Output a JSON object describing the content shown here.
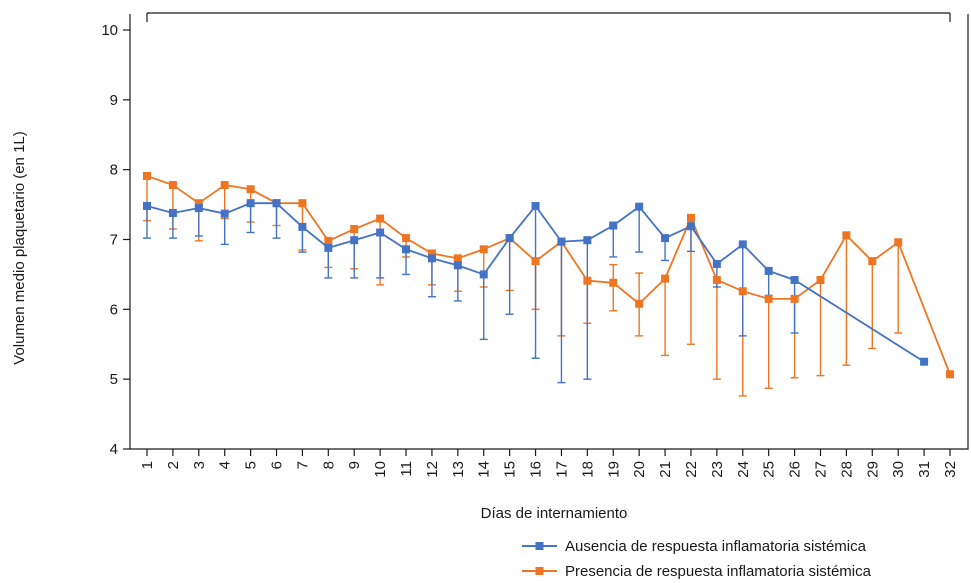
{
  "chart_data": {
    "type": "line",
    "xlabel": "Días de internamiento",
    "ylabel": "Volumen medio plaquetario (en 1L)",
    "ylim": [
      4,
      10
    ],
    "yticks": [
      "4",
      "5",
      "6",
      "7",
      "8",
      "9",
      "10"
    ],
    "categories": [
      "1",
      "2",
      "3",
      "4",
      "5",
      "6",
      "7",
      "8",
      "9",
      "10",
      "11",
      "12",
      "13",
      "14",
      "15",
      "16",
      "17",
      "18",
      "19",
      "20",
      "21",
      "22",
      "23",
      "24",
      "25",
      "26",
      "27",
      "28",
      "29",
      "30",
      "31",
      "32"
    ],
    "grid": false,
    "legend_position": "bottom-right",
    "series": [
      {
        "name": "Ausencia de respuesta inflamatoria sistémica",
        "color": "#4472c4",
        "values": [
          7.48,
          7.38,
          7.45,
          7.37,
          7.52,
          7.52,
          7.18,
          6.88,
          6.99,
          7.1,
          6.86,
          6.73,
          6.63,
          6.5,
          7.02,
          7.48,
          6.97,
          6.99,
          7.2,
          7.47,
          7.02,
          7.19,
          6.65,
          6.93,
          6.55,
          6.42,
          null,
          null,
          null,
          null,
          5.25,
          null
        ],
        "err_low": [
          7.02,
          7.02,
          7.05,
          6.93,
          7.1,
          7.02,
          6.82,
          6.45,
          6.45,
          6.45,
          6.5,
          6.18,
          6.12,
          5.57,
          5.93,
          5.3,
          4.95,
          5.0,
          6.75,
          6.82,
          6.7,
          6.83,
          6.32,
          5.62,
          6.2,
          5.66,
          null,
          null,
          null,
          null,
          null,
          null
        ]
      },
      {
        "name": "Presencia de respuesta inflamatoria sistémica",
        "color": "#ee7623",
        "values": [
          7.91,
          7.78,
          7.52,
          7.78,
          7.72,
          7.52,
          7.52,
          6.98,
          7.15,
          7.3,
          7.02,
          6.8,
          6.73,
          6.86,
          7.02,
          6.69,
          6.97,
          6.41,
          6.38,
          6.08,
          6.44,
          7.31,
          6.42,
          6.26,
          6.15,
          6.15,
          6.42,
          7.06,
          6.69,
          6.96,
          null,
          5.07
        ],
        "err_low": [
          7.27,
          7.15,
          6.98,
          7.3,
          7.25,
          7.2,
          6.85,
          6.6,
          6.58,
          6.35,
          6.75,
          6.35,
          6.26,
          6.32,
          6.27,
          6.0,
          5.62,
          5.8,
          5.98,
          5.62,
          5.34,
          5.5,
          5.0,
          4.76,
          4.87,
          5.02,
          5.05,
          5.2,
          5.44,
          5.66,
          null,
          null
        ],
        "err_high": [
          null,
          null,
          null,
          null,
          null,
          null,
          null,
          null,
          null,
          null,
          null,
          null,
          null,
          null,
          null,
          null,
          null,
          null,
          6.64,
          6.52,
          null,
          null,
          null,
          null,
          null,
          null,
          null,
          null,
          null,
          null,
          null,
          null
        ]
      }
    ]
  }
}
